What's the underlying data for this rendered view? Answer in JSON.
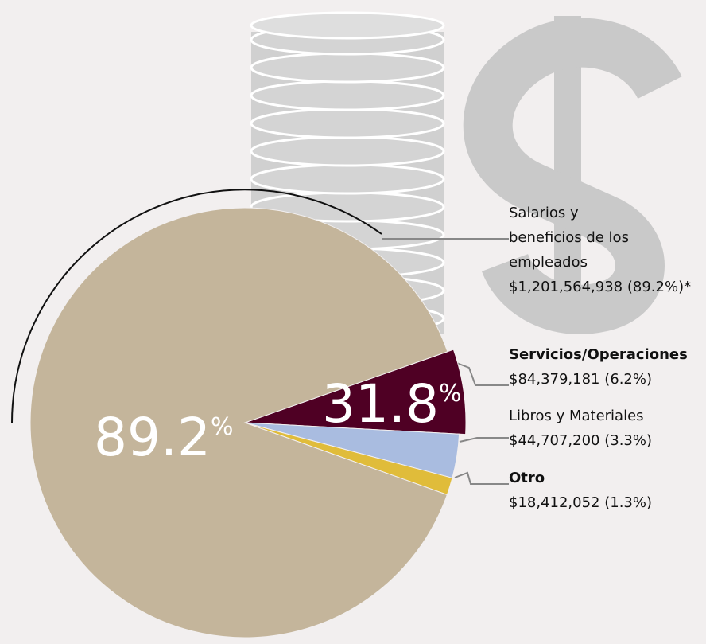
{
  "chart_data": {
    "type": "pie",
    "categories": [
      "Salarios y beneficios de los empleados",
      "Servicios/Operaciones",
      "Libros y Materiales",
      "Otro"
    ],
    "values": [
      89.2,
      6.2,
      3.3,
      1.3
    ],
    "value_labels": [
      "$1,201,564,938 (89.2%)*",
      "$84,379,181 (6.2%)",
      "$44,707,200 (3.3%)",
      "$18,412,052 (1.3%)"
    ],
    "colors": [
      "#c4b59b",
      "#4f0024",
      "#a9bce0",
      "#e0bc3a"
    ],
    "annotations": [
      "89.2%",
      "31.8%"
    ]
  }
}
